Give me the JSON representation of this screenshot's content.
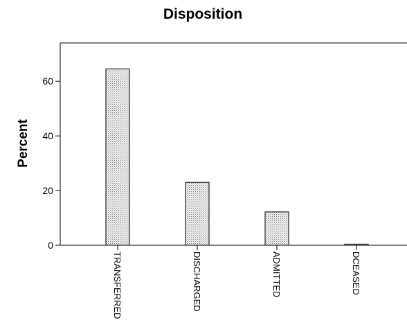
{
  "chart_data": {
    "type": "bar",
    "title": "Disposition",
    "xlabel": "",
    "ylabel": "Percent",
    "categories": [
      "TRANSFERRED",
      "DISCHARGED",
      "ADMITTED",
      "DCEASED"
    ],
    "values": [
      64.5,
      23.0,
      12.2,
      0.4
    ],
    "ylim": [
      0,
      74
    ],
    "yticks": [
      0,
      20,
      40,
      60
    ],
    "grid": false,
    "legend": "none",
    "bar_fill": "#d9d9d9",
    "bar_stroke": "#222222"
  }
}
